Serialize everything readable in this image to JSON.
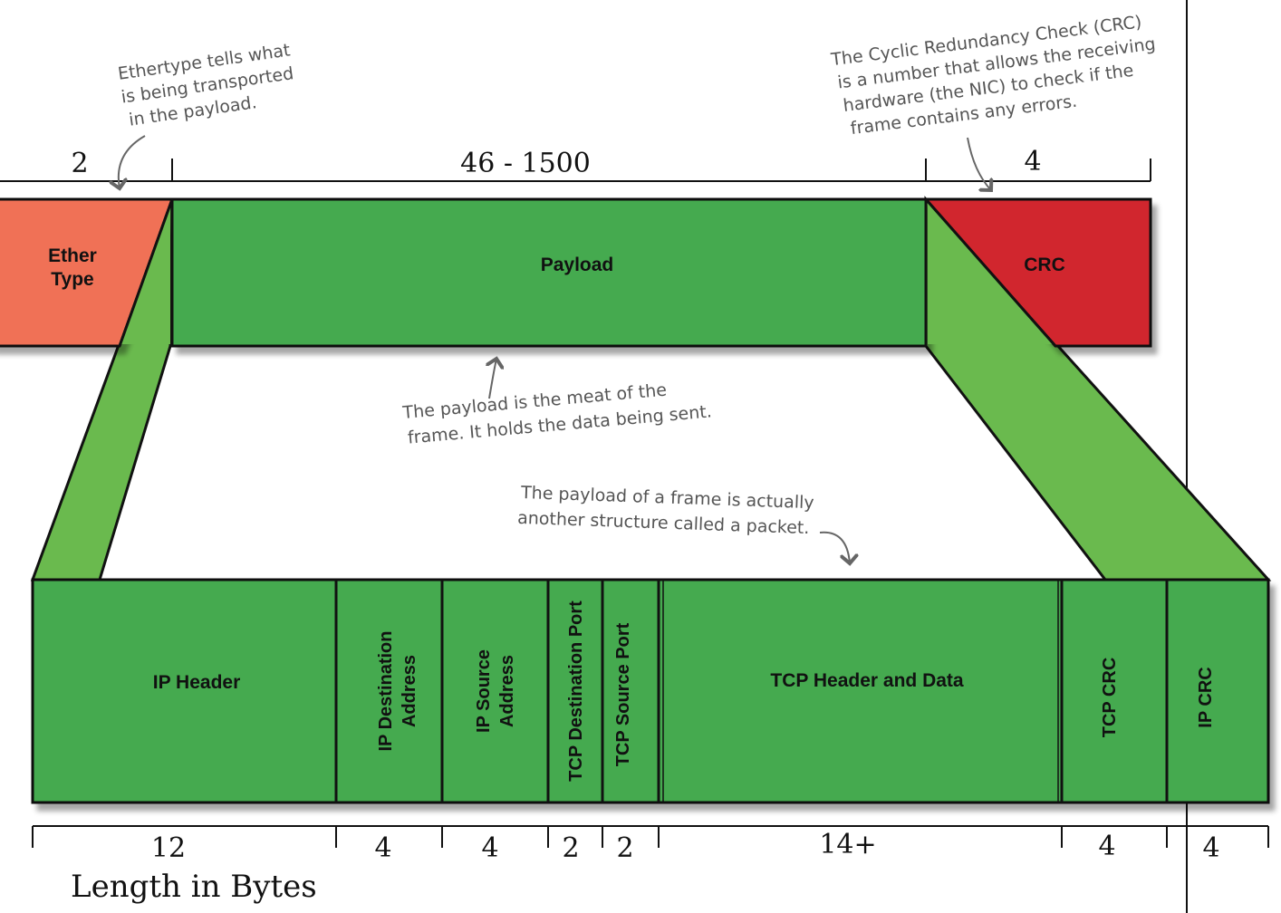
{
  "frame": {
    "sections": {
      "ethertype": {
        "label_line1": "Ether",
        "label_line2": "Type",
        "size": "2"
      },
      "payload": {
        "label": "Payload",
        "size": "46 - 1500"
      },
      "crc": {
        "label": "CRC",
        "size": "4"
      }
    }
  },
  "packet": {
    "fields": [
      {
        "label": "IP Header",
        "size": "12"
      },
      {
        "label_line1": "IP Destination",
        "label_line2": "Address",
        "size": "4"
      },
      {
        "label_line1": "IP Source",
        "label_line2": "Address",
        "size": "4"
      },
      {
        "label": "TCP Destination Port",
        "size": "2"
      },
      {
        "label": "TCP Source Port",
        "size": "2"
      },
      {
        "label": "TCP Header and Data",
        "size": "14+"
      },
      {
        "label": "TCP CRC",
        "size": "4"
      },
      {
        "label": "IP CRC",
        "size": "4"
      }
    ]
  },
  "annotations": {
    "ethertype": [
      "Ethertype tells what",
      "is being transported",
      "in the payload."
    ],
    "crc": [
      "The Cyclic Redundancy Check (CRC)",
      "is a number that allows the receiving",
      "hardware (the NIC) to check if the",
      "frame contains any errors."
    ],
    "payload": [
      "The payload is the meat of the",
      "frame. It holds the data being sent."
    ],
    "packet": [
      "The payload of a frame is actually",
      "another structure called a packet."
    ]
  },
  "axis_title": "Length in Bytes",
  "colors": {
    "ethertype": "#f07157",
    "payload": "#44aa50",
    "connector": "#6aba4e",
    "crc": "#d1252e",
    "packet": "#44aa50",
    "outline": "#111111"
  }
}
